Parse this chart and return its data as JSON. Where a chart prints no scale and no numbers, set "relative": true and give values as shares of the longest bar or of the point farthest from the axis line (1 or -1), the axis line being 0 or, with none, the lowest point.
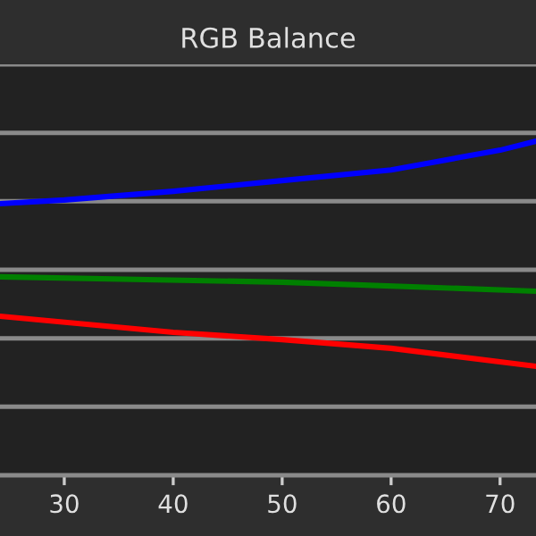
{
  "chart_data": {
    "type": "line",
    "title": "RGB Balance",
    "relative": true,
    "grid": "y",
    "xlim": [
      24.1,
      73.3
    ],
    "xticks": [
      30,
      40,
      50,
      60,
      70
    ],
    "series": [
      {
        "color": "#0000ff",
        "x": [
          24.1,
          30,
          40,
          50,
          60,
          70,
          73.3
        ],
        "values": [
          0.813,
          0.824,
          0.85,
          0.882,
          0.914,
          0.973,
          1.0
        ]
      },
      {
        "color": "#008000",
        "x": [
          24.1,
          50,
          73.3
        ],
        "values": [
          0.594,
          0.578,
          0.551
        ]
      },
      {
        "color": "#ff0000",
        "x": [
          24.1,
          40,
          50,
          60,
          73.3
        ],
        "values": [
          0.476,
          0.428,
          0.406,
          0.38,
          0.326
        ]
      }
    ]
  }
}
